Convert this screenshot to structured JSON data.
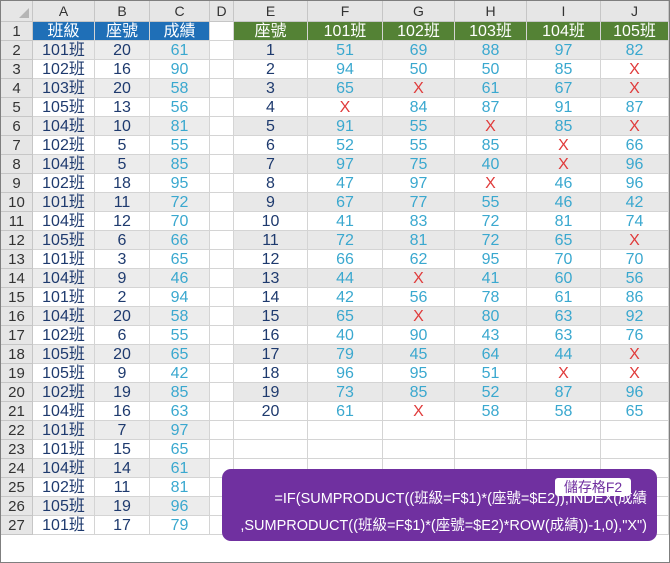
{
  "columns": [
    "A",
    "B",
    "C",
    "D",
    "E",
    "F",
    "G",
    "H",
    "I",
    "J"
  ],
  "rows": [
    "1",
    "2",
    "3",
    "4",
    "5",
    "6",
    "7",
    "8",
    "9",
    "10",
    "11",
    "12",
    "13",
    "14",
    "15",
    "16",
    "17",
    "18",
    "19",
    "20",
    "21",
    "22",
    "23",
    "24",
    "25",
    "26",
    "27"
  ],
  "left_headers": [
    "班級",
    "座號",
    "成績"
  ],
  "left_data": [
    [
      "101班",
      "20",
      "61"
    ],
    [
      "102班",
      "16",
      "90"
    ],
    [
      "103班",
      "20",
      "58"
    ],
    [
      "105班",
      "13",
      "56"
    ],
    [
      "104班",
      "10",
      "81"
    ],
    [
      "102班",
      "5",
      "55"
    ],
    [
      "104班",
      "5",
      "85"
    ],
    [
      "102班",
      "18",
      "95"
    ],
    [
      "101班",
      "11",
      "72"
    ],
    [
      "104班",
      "12",
      "70"
    ],
    [
      "105班",
      "6",
      "66"
    ],
    [
      "101班",
      "3",
      "65"
    ],
    [
      "104班",
      "9",
      "46"
    ],
    [
      "101班",
      "2",
      "94"
    ],
    [
      "104班",
      "20",
      "58"
    ],
    [
      "102班",
      "6",
      "55"
    ],
    [
      "105班",
      "20",
      "65"
    ],
    [
      "105班",
      "9",
      "42"
    ],
    [
      "102班",
      "19",
      "85"
    ],
    [
      "104班",
      "16",
      "63"
    ],
    [
      "101班",
      "7",
      "97"
    ],
    [
      "101班",
      "15",
      "65"
    ],
    [
      "104班",
      "14",
      "61"
    ],
    [
      "102班",
      "11",
      "81"
    ],
    [
      "105班",
      "19",
      "96"
    ],
    [
      "101班",
      "17",
      "79"
    ]
  ],
  "right_headers": [
    "座號",
    "101班",
    "102班",
    "103班",
    "104班",
    "105班"
  ],
  "right_data": [
    [
      "1",
      "51",
      "69",
      "88",
      "97",
      "82"
    ],
    [
      "2",
      "94",
      "50",
      "50",
      "85",
      "X"
    ],
    [
      "3",
      "65",
      "X",
      "61",
      "67",
      "X"
    ],
    [
      "4",
      "X",
      "84",
      "87",
      "91",
      "87"
    ],
    [
      "5",
      "91",
      "55",
      "X",
      "85",
      "X"
    ],
    [
      "6",
      "52",
      "55",
      "85",
      "X",
      "66"
    ],
    [
      "7",
      "97",
      "75",
      "40",
      "X",
      "96"
    ],
    [
      "8",
      "47",
      "97",
      "X",
      "46",
      "96"
    ],
    [
      "9",
      "67",
      "77",
      "55",
      "46",
      "42"
    ],
    [
      "10",
      "41",
      "83",
      "72",
      "81",
      "74"
    ],
    [
      "11",
      "72",
      "81",
      "72",
      "65",
      "X"
    ],
    [
      "12",
      "66",
      "62",
      "95",
      "70",
      "70"
    ],
    [
      "13",
      "44",
      "X",
      "41",
      "60",
      "56"
    ],
    [
      "14",
      "42",
      "56",
      "78",
      "61",
      "86"
    ],
    [
      "15",
      "65",
      "X",
      "80",
      "63",
      "92"
    ],
    [
      "16",
      "40",
      "90",
      "43",
      "63",
      "76"
    ],
    [
      "17",
      "79",
      "45",
      "64",
      "44",
      "X"
    ],
    [
      "18",
      "96",
      "95",
      "51",
      "X",
      "X"
    ],
    [
      "19",
      "73",
      "85",
      "52",
      "87",
      "96"
    ],
    [
      "20",
      "61",
      "X",
      "58",
      "58",
      "65"
    ]
  ],
  "callout": {
    "tag": "儲存格F2",
    "line1": "=IF(SUMPRODUCT((班級=F$1)*(座號=$E2)),INDEX(成績",
    "line2": ",SUMPRODUCT((班級=F$1)*(座號=$E2)*ROW(成績))-1,0),\"X\")"
  },
  "colors": {
    "header_blue": "#1f6fb7",
    "header_green": "#548235",
    "value_blue": "#3aa8cf",
    "x_red": "#e03b3b",
    "callout_purple": "#7030a0"
  }
}
